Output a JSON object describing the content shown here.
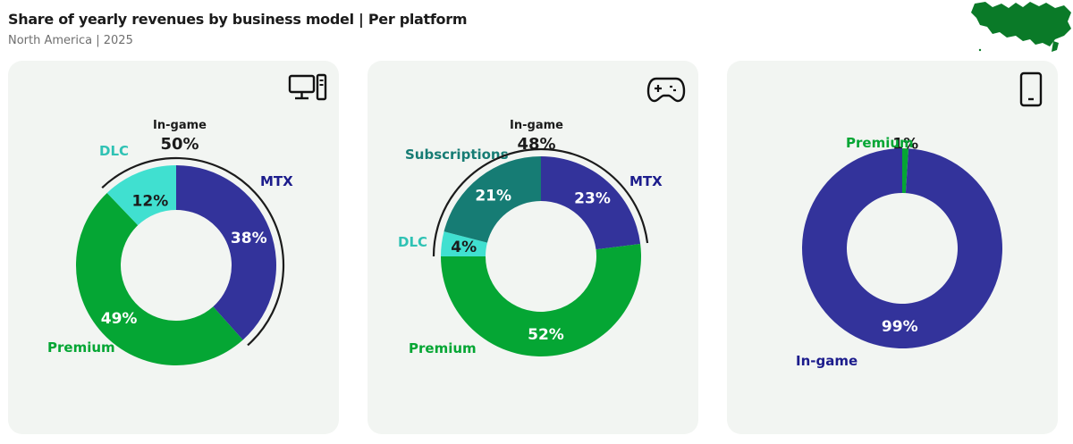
{
  "title": "Share of yearly revenues by business model | Per platform",
  "subtitle": "North America | 2025",
  "colors": {
    "MTX": "#33339b",
    "Premium": "#05a634",
    "DLC": "#40e0d0",
    "Subscriptions": "#167c74",
    "In-game": "#33339b",
    "card_bg": "#f2f5f2",
    "map": "#0a7a28"
  },
  "chart_data": [
    {
      "type": "pie",
      "platform_icon": "desktop-pc-icon",
      "slices": [
        {
          "label": "MTX",
          "value": 38,
          "display": "38%"
        },
        {
          "label": "Premium",
          "value": 49,
          "display": "49%"
        },
        {
          "label": "DLC",
          "value": 12,
          "display": "12%"
        }
      ],
      "group": {
        "label": "In-game",
        "display": "50%",
        "members": [
          "DLC",
          "MTX"
        ]
      }
    },
    {
      "type": "pie",
      "platform_icon": "gamepad-icon",
      "slices": [
        {
          "label": "MTX",
          "value": 23,
          "display": "23%"
        },
        {
          "label": "Premium",
          "value": 52,
          "display": "52%"
        },
        {
          "label": "DLC",
          "value": 4,
          "display": "4%"
        },
        {
          "label": "Subscriptions",
          "value": 21,
          "display": "21%"
        }
      ],
      "group": {
        "label": "In-game",
        "display": "48%",
        "members": [
          "DLC",
          "Subscriptions",
          "MTX"
        ]
      }
    },
    {
      "type": "pie",
      "platform_icon": "smartphone-icon",
      "slices": [
        {
          "label": "Premium",
          "value": 1,
          "display": "1%"
        },
        {
          "label": "In-game",
          "value": 99,
          "display": "99%"
        }
      ]
    }
  ]
}
